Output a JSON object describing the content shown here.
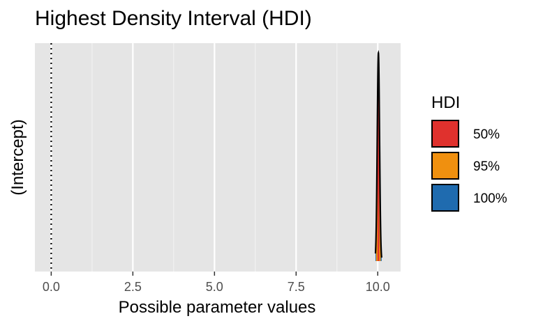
{
  "chart_data": {
    "type": "area",
    "title": "Highest Density Interval (HDI)",
    "xlabel": "Possible parameter values",
    "ylabel": "(Intercept)",
    "xlim": [
      -0.5,
      10.7
    ],
    "x_ticks": [
      0,
      2.5,
      5,
      7.5,
      10
    ],
    "x_tick_labels": [
      "0.0",
      "2.5",
      "5.0",
      "7.5",
      "10.0"
    ],
    "reference_line": {
      "x": 0,
      "style": "dotted"
    },
    "grid": true,
    "legend_position": "right",
    "legend_title": "HDI",
    "density": {
      "parameter": "(Intercept)",
      "center": 10.02,
      "spread": 0.035,
      "range": [
        9.93,
        10.12
      ],
      "intervals": [
        {
          "name": "50%",
          "low": 9.995,
          "high": 10.045
        },
        {
          "name": "95%",
          "low": 9.95,
          "high": 10.09
        },
        {
          "name": "100%",
          "low": 9.93,
          "high": 10.12
        }
      ]
    },
    "series": [
      {
        "name": "50%",
        "color": "#E0312D"
      },
      {
        "name": "95%",
        "color": "#F0900F"
      },
      {
        "name": "100%",
        "color": "#1F6BAF"
      }
    ]
  }
}
